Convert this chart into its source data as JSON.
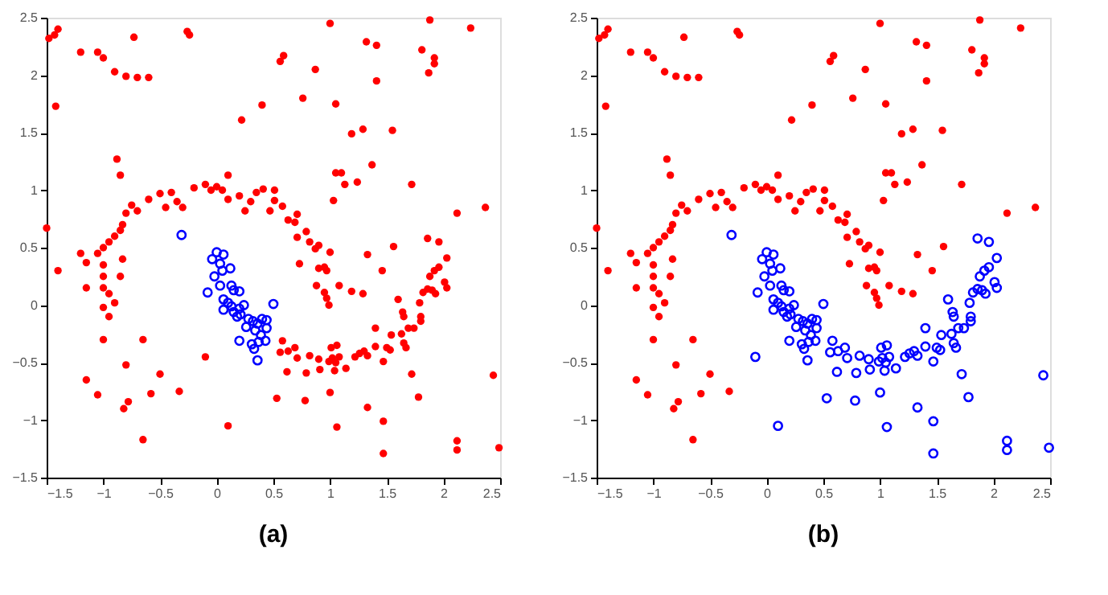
{
  "chart_data": [
    {
      "type": "scatter",
      "xlim": [
        -1.5,
        2.5
      ],
      "ylim": [
        -1.5,
        2.5
      ],
      "xticks": [
        -1.5,
        -1,
        -0.5,
        0,
        0.5,
        1,
        1.5,
        2,
        2.5
      ],
      "yticks": [
        -1.5,
        -1,
        -0.5,
        0,
        0.5,
        1,
        1.5,
        2,
        2.5
      ],
      "grid": false,
      "marker": "circle",
      "annotations": [
        "(a)"
      ],
      "series": [
        {
          "color": "#ff0000",
          "x": [
            -1.48,
            -1.43,
            -1.4,
            -1.42,
            -1.2,
            -1.05,
            -1.0,
            -0.9,
            -0.8,
            -0.7,
            -0.6,
            -0.73,
            -0.26,
            -0.24,
            -0.88,
            -0.85,
            -1.5,
            -1.2,
            -1.05,
            -1.0,
            -0.95,
            -0.9,
            -0.85,
            -0.83,
            -0.8,
            -0.75,
            -0.7,
            -0.6,
            -0.5,
            -0.45,
            -0.4,
            -0.35,
            -0.3,
            -0.2,
            -0.1,
            -0.05,
            0,
            0.05,
            0.1,
            0.1,
            0.2,
            0.25,
            0.3,
            0.35,
            0.41,
            0.51,
            0.51,
            0.47,
            0.58,
            0.71,
            0.63,
            0.69,
            0.79,
            0.71,
            0.82,
            0.9,
            0.87,
            1.0,
            0.73,
            0.9,
            0.95,
            0.97,
            0.88,
            0.95,
            0.97,
            0.99,
            1.08,
            1.19,
            1.29,
            1.33,
            1.46,
            1.56,
            -1.15,
            -1.0,
            -1.0,
            -1.0,
            -0.95,
            -0.9,
            -1.0,
            -0.85,
            -0.83,
            -1.15,
            -1.4,
            -0.95,
            -1.0,
            -0.65,
            -0.8,
            -1.15,
            -0.5,
            -1.05,
            -0.58,
            -0.33,
            -0.78,
            -0.82,
            -0.65,
            1.0,
            1.88,
            2.24,
            1.32,
            1.41,
            1.81,
            1.92,
            1.92,
            1.87,
            0.59,
            0.56,
            0.87,
            1.41,
            0.4,
            0.76,
            1.05,
            0.22,
            1.19,
            1.29,
            1.55,
            1.37,
            1.05,
            1.1,
            1.13,
            1.24,
            1.03,
            1.72,
            2.12,
            2.37,
            0.58,
            0.56,
            0.63,
            0.69,
            0.71,
            0.62,
            0.82,
            0.79,
            0.9,
            0.91,
            0.99,
            1.02,
            1.05,
            1.08,
            1.04,
            1.01,
            1.06,
            1.14,
            1.22,
            1.26,
            1.3,
            1.33,
            1.4,
            1.47,
            1.5,
            1.53,
            1.4,
            1.54,
            1.63,
            1.65,
            1.67,
            1.6,
            1.64,
            1.65,
            1.69,
            1.74,
            1.79,
            1.8,
            1.8,
            1.82,
            1.86,
            1.9,
            1.93,
            1.88,
            1.92,
            1.96,
            2.01,
            2.03,
            2.03,
            1.86,
            1.96,
            1.72,
            1.78,
            0.53,
            0.78,
            1.0,
            1.06,
            1.33,
            1.47,
            1.47,
            2.12,
            2.12,
            2.44,
            2.49,
            -0.1,
            0.1
          ],
          "values": [
            2.32,
            2.35,
            2.4,
            1.73,
            2.2,
            2.2,
            2.15,
            2.03,
            1.99,
            1.98,
            1.98,
            2.33,
            2.38,
            2.35,
            1.27,
            1.13,
            0.67,
            0.45,
            0.45,
            0.5,
            0.55,
            0.6,
            0.65,
            0.7,
            0.8,
            0.87,
            0.82,
            0.92,
            0.97,
            0.85,
            0.98,
            0.9,
            0.85,
            1.02,
            1.05,
            1.0,
            1.03,
            1.0,
            0.92,
            1.13,
            0.95,
            0.82,
            0.9,
            0.98,
            1.01,
            1.0,
            0.91,
            0.82,
            0.86,
            0.79,
            0.74,
            0.72,
            0.64,
            0.59,
            0.55,
            0.52,
            0.49,
            0.46,
            0.36,
            0.32,
            0.33,
            0.3,
            0.17,
            0.11,
            0.06,
            0.0,
            0.17,
            0.12,
            0.1,
            0.44,
            0.3,
            0.51,
            0.37,
            0.35,
            0.25,
            0.15,
            0.1,
            0.02,
            -0.02,
            0.25,
            0.4,
            0.15,
            0.3,
            -0.1,
            -0.3,
            -0.3,
            -0.52,
            -0.65,
            -0.6,
            -0.78,
            -0.77,
            -0.75,
            -0.84,
            -0.9,
            -1.17,
            2.45,
            2.48,
            2.41,
            2.29,
            2.26,
            2.22,
            2.15,
            2.1,
            2.02,
            2.17,
            2.12,
            2.05,
            1.95,
            1.74,
            1.8,
            1.75,
            1.61,
            1.49,
            1.53,
            1.52,
            1.22,
            1.15,
            1.15,
            1.05,
            1.07,
            0.91,
            1.05,
            0.8,
            0.85,
            -0.31,
            -0.41,
            -0.4,
            -0.37,
            -0.46,
            -0.58,
            -0.44,
            -0.59,
            -0.47,
            -0.56,
            -0.49,
            -0.46,
            -0.5,
            -0.45,
            -0.57,
            -0.37,
            -0.35,
            -0.55,
            -0.45,
            -0.42,
            -0.4,
            -0.44,
            -0.36,
            -0.49,
            -0.37,
            -0.39,
            -0.2,
            -0.26,
            -0.25,
            -0.33,
            -0.37,
            0.05,
            -0.06,
            -0.1,
            -0.2,
            -0.2,
            0.02,
            -0.1,
            -0.14,
            0.11,
            0.14,
            0.13,
            0.1,
            0.25,
            0.3,
            0.33,
            0.2,
            0.15,
            0.41,
            0.58,
            0.55,
            -0.6,
            -0.8,
            -0.81,
            -0.83,
            -0.76,
            -1.06,
            -0.89,
            -1.01,
            -1.29,
            -1.18,
            -1.26,
            -0.61,
            -1.24,
            -0.45,
            -1.05
          ]
        },
        {
          "color": "#0000ff",
          "x": [
            0,
            0.06,
            -0.04,
            0.03,
            0.12,
            -0.02,
            0.05,
            0.03,
            -0.08,
            0.13,
            0.15,
            0.2,
            0.06,
            0.1,
            0.13,
            0.06,
            0.15,
            0.2,
            0.24,
            0.18,
            0.21,
            0.28,
            0.32,
            0.36,
            0.4,
            0.26,
            0.34,
            0.39,
            0.2,
            0.31,
            0.33,
            0.37,
            0.43,
            0.36,
            -0.31,
            0.5,
            0.44,
            0.44
          ],
          "values": [
            0.46,
            0.44,
            0.4,
            0.36,
            0.32,
            0.25,
            0.3,
            0.17,
            0.11,
            0.17,
            0.13,
            0.12,
            0.05,
            0.02,
            -0.01,
            -0.04,
            -0.06,
            -0.03,
            0.0,
            -0.1,
            -0.08,
            -0.12,
            -0.14,
            -0.16,
            -0.12,
            -0.19,
            -0.22,
            -0.26,
            -0.31,
            -0.34,
            -0.38,
            -0.32,
            -0.31,
            -0.48,
            0.61,
            0.01,
            -0.13,
            -0.2
          ]
        }
      ]
    },
    {
      "type": "scatter",
      "xlim": [
        -1.5,
        2.5
      ],
      "ylim": [
        -1.5,
        2.5
      ],
      "xticks": [
        -1.5,
        -1,
        -0.5,
        0,
        0.5,
        1,
        1.5,
        2,
        2.5
      ],
      "yticks": [
        -1.5,
        -1,
        -0.5,
        0,
        0.5,
        1,
        1.5,
        2,
        2.5
      ],
      "grid": false,
      "marker": "circle",
      "annotations": [
        "(b)"
      ],
      "series": [
        {
          "color": "#ff0000",
          "x": [
            -1.48,
            -1.43,
            -1.4,
            -1.42,
            -1.2,
            -1.05,
            -1.0,
            -0.9,
            -0.8,
            -0.7,
            -0.6,
            -0.73,
            -0.26,
            -0.24,
            -0.88,
            -0.85,
            -1.5,
            -1.2,
            -1.05,
            -1.0,
            -0.95,
            -0.9,
            -0.85,
            -0.83,
            -0.8,
            -0.75,
            -0.7,
            -0.6,
            -0.5,
            -0.45,
            -0.4,
            -0.35,
            -0.3,
            -0.2,
            -0.1,
            -0.05,
            0,
            0.05,
            0.1,
            0.1,
            0.2,
            0.25,
            0.3,
            0.35,
            0.41,
            0.51,
            0.51,
            0.47,
            0.58,
            0.71,
            0.63,
            0.69,
            0.79,
            0.71,
            0.82,
            0.9,
            0.87,
            1.0,
            0.73,
            0.9,
            0.95,
            0.97,
            0.88,
            0.95,
            0.97,
            0.99,
            1.08,
            1.19,
            1.29,
            1.33,
            1.46,
            1.56,
            -1.15,
            -1.0,
            -1.0,
            -1.0,
            -0.95,
            -0.9,
            -1.0,
            -0.85,
            -0.83,
            -1.15,
            -1.4,
            -0.95,
            -1.0,
            -0.65,
            -0.8,
            -1.15,
            -0.5,
            -1.05,
            -0.58,
            -0.33,
            -0.78,
            -0.82,
            -0.65,
            1.0,
            1.88,
            2.24,
            1.32,
            1.41,
            1.81,
            1.92,
            1.92,
            1.87,
            0.59,
            0.56,
            0.87,
            1.41,
            0.4,
            0.76,
            1.05,
            0.22,
            1.19,
            1.29,
            1.55,
            1.37,
            1.05,
            1.1,
            1.13,
            1.24,
            1.03,
            1.72,
            2.12,
            2.37
          ],
          "values": [
            2.32,
            2.35,
            2.4,
            1.73,
            2.2,
            2.2,
            2.15,
            2.03,
            1.99,
            1.98,
            1.98,
            2.33,
            2.38,
            2.35,
            1.27,
            1.13,
            0.67,
            0.45,
            0.45,
            0.5,
            0.55,
            0.6,
            0.65,
            0.7,
            0.8,
            0.87,
            0.82,
            0.92,
            0.97,
            0.85,
            0.98,
            0.9,
            0.85,
            1.02,
            1.05,
            1.0,
            1.03,
            1.0,
            0.92,
            1.13,
            0.95,
            0.82,
            0.9,
            0.98,
            1.01,
            1.0,
            0.91,
            0.82,
            0.86,
            0.79,
            0.74,
            0.72,
            0.64,
            0.59,
            0.55,
            0.52,
            0.49,
            0.46,
            0.36,
            0.32,
            0.33,
            0.3,
            0.17,
            0.11,
            0.06,
            0.0,
            0.17,
            0.12,
            0.1,
            0.44,
            0.3,
            0.51,
            0.37,
            0.35,
            0.25,
            0.15,
            0.1,
            0.02,
            -0.02,
            0.25,
            0.4,
            0.15,
            0.3,
            -0.1,
            -0.3,
            -0.3,
            -0.52,
            -0.65,
            -0.6,
            -0.78,
            -0.77,
            -0.75,
            -0.84,
            -0.9,
            -1.17,
            2.45,
            2.48,
            2.41,
            2.29,
            2.26,
            2.22,
            2.15,
            2.1,
            2.02,
            2.17,
            2.12,
            2.05,
            1.95,
            1.74,
            1.8,
            1.75,
            1.61,
            1.49,
            1.53,
            1.52,
            1.22,
            1.15,
            1.15,
            1.05,
            1.07,
            0.91,
            1.05,
            0.8,
            0.85
          ]
        },
        {
          "color": "#0000ff",
          "x": [
            0,
            0.06,
            -0.04,
            0.03,
            0.12,
            -0.02,
            0.05,
            0.03,
            -0.08,
            0.13,
            0.15,
            0.2,
            0.06,
            0.1,
            0.13,
            0.06,
            0.15,
            0.2,
            0.24,
            0.18,
            0.21,
            0.28,
            0.32,
            0.36,
            0.4,
            0.26,
            0.34,
            0.39,
            0.2,
            0.31,
            0.33,
            0.37,
            0.43,
            0.36,
            -0.31,
            0.5,
            0.44,
            0.44,
            0.58,
            0.56,
            0.63,
            0.69,
            0.71,
            0.62,
            0.82,
            0.79,
            0.9,
            0.91,
            0.99,
            1.02,
            1.05,
            1.08,
            1.04,
            1.01,
            1.06,
            1.14,
            1.22,
            1.26,
            1.3,
            1.33,
            1.4,
            1.47,
            1.5,
            1.53,
            1.4,
            1.54,
            1.63,
            1.65,
            1.67,
            1.6,
            1.64,
            1.65,
            1.69,
            1.74,
            1.79,
            1.8,
            1.8,
            1.82,
            1.86,
            1.9,
            1.93,
            1.88,
            1.92,
            1.96,
            2.01,
            2.03,
            2.03,
            1.86,
            1.96,
            1.72,
            1.78,
            0.53,
            0.78,
            1.0,
            1.06,
            1.33,
            1.47,
            1.47,
            2.12,
            2.12,
            2.44,
            2.49,
            -0.1,
            0.1
          ],
          "values": [
            0.46,
            0.44,
            0.4,
            0.36,
            0.32,
            0.25,
            0.3,
            0.17,
            0.11,
            0.17,
            0.13,
            0.12,
            0.05,
            0.02,
            -0.01,
            -0.04,
            -0.06,
            -0.03,
            0.0,
            -0.1,
            -0.08,
            -0.12,
            -0.14,
            -0.16,
            -0.12,
            -0.19,
            -0.22,
            -0.26,
            -0.31,
            -0.34,
            -0.38,
            -0.32,
            -0.31,
            -0.48,
            0.61,
            0.01,
            -0.13,
            -0.2,
            -0.31,
            -0.41,
            -0.4,
            -0.37,
            -0.46,
            -0.58,
            -0.44,
            -0.59,
            -0.47,
            -0.56,
            -0.49,
            -0.46,
            -0.5,
            -0.45,
            -0.57,
            -0.37,
            -0.35,
            -0.55,
            -0.45,
            -0.42,
            -0.4,
            -0.44,
            -0.36,
            -0.49,
            -0.37,
            -0.39,
            -0.2,
            -0.26,
            -0.25,
            -0.33,
            -0.37,
            0.05,
            -0.06,
            -0.1,
            -0.2,
            -0.2,
            0.02,
            -0.1,
            -0.14,
            0.11,
            0.14,
            0.13,
            0.1,
            0.25,
            0.3,
            0.33,
            0.2,
            0.15,
            0.41,
            0.58,
            0.55,
            -0.6,
            -0.8,
            -0.81,
            -0.83,
            -0.76,
            -1.06,
            -0.89,
            -1.01,
            -1.29,
            -1.18,
            -1.26,
            -0.61,
            -1.24,
            -0.45,
            -1.05
          ]
        }
      ]
    }
  ]
}
